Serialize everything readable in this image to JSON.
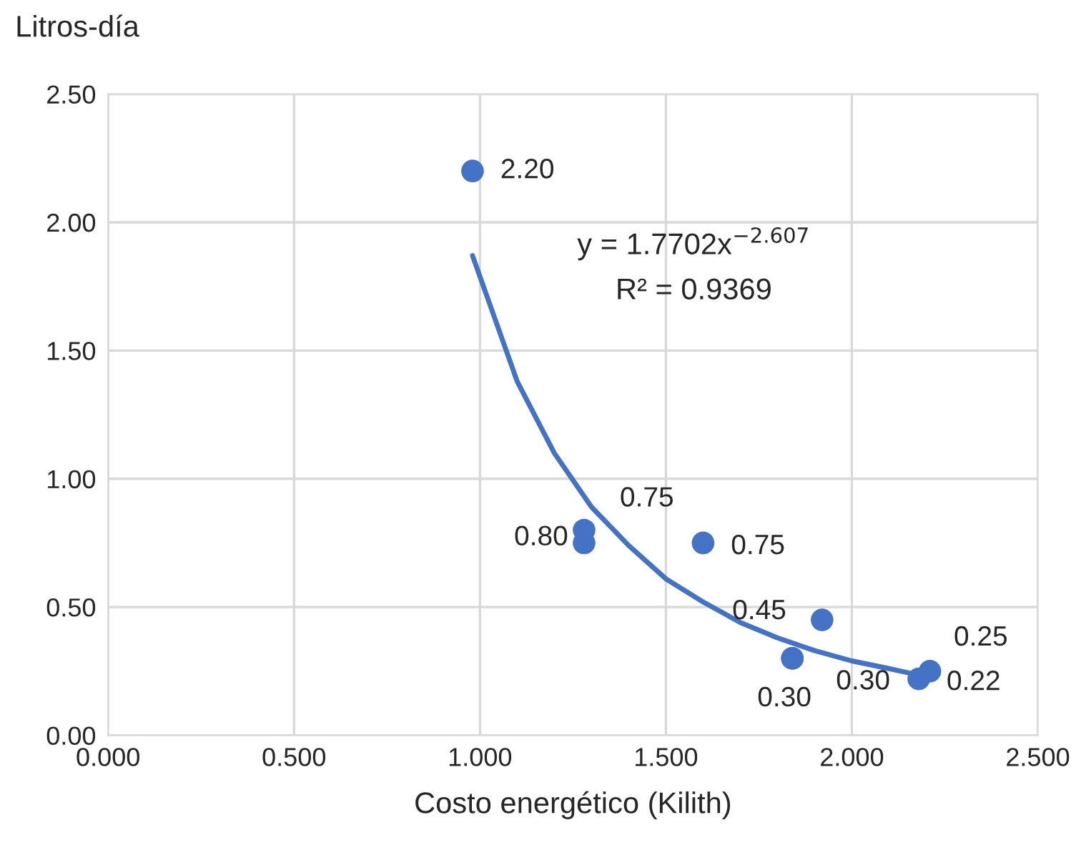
{
  "chart_data": {
    "type": "scatter",
    "xlabel": "Costo energético (Kilith)",
    "ylabel": "Litros-día",
    "series": [
      {
        "color": "#4472c4",
        "x": [
          0.98,
          1.28,
          1.28,
          1.6,
          1.92,
          1.84,
          1.84,
          2.18,
          2.21
        ],
        "values": [
          2.2,
          0.8,
          0.75,
          0.75,
          0.45,
          0.3,
          0.3,
          0.22,
          0.25
        ],
        "value_labels": [
          "2.20",
          "0.80",
          "0.75",
          "0.75",
          "0.45",
          "0.30",
          "0.30",
          "0.22",
          "0.25"
        ],
        "marker": "circle"
      },
      {
        "type": "line",
        "color": "#4472c4",
        "x": [
          0.98,
          1.1,
          1.2,
          1.3,
          1.4,
          1.5,
          1.6,
          1.7,
          1.8,
          1.9,
          2.0,
          2.1,
          2.21
        ],
        "values": [
          1.87,
          1.38,
          1.1,
          0.89,
          0.74,
          0.61,
          0.52,
          0.44,
          0.38,
          0.33,
          0.29,
          0.26,
          0.225
        ],
        "line_style": "solid",
        "marker": "none"
      }
    ],
    "annotations": [
      "y = 1.7702x$^{−2.607}$",
      "R² = 0.9369"
    ],
    "xlim": [
      0,
      2.5
    ],
    "xticks": [
      {
        "value": 0,
        "label": "0.000"
      },
      {
        "value": 0.5,
        "label": "0.500"
      },
      {
        "value": 1,
        "label": "1.000"
      },
      {
        "value": 1.5,
        "label": "1.500"
      },
      {
        "value": 2,
        "label": "2.000"
      },
      {
        "value": 2.5,
        "label": "2.500"
      }
    ],
    "ylim": [
      0,
      2.5
    ],
    "yticks": [
      {
        "value": 0,
        "label": "0.00"
      },
      {
        "value": 0.5,
        "label": "0.50"
      },
      {
        "value": 1,
        "label": "1.00"
      },
      {
        "value": 1.5,
        "label": "1.50"
      },
      {
        "value": 2,
        "label": "2.00"
      },
      {
        "value": 2.5,
        "label": "2.50"
      }
    ],
    "grid": true,
    "legend": false
  }
}
